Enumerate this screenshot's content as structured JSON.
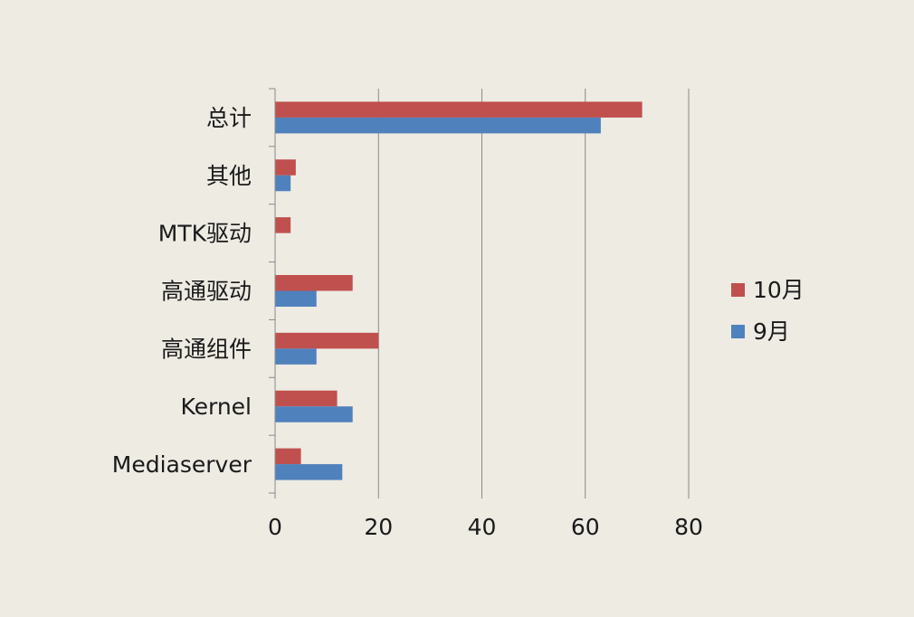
{
  "chart_data": {
    "type": "bar",
    "orientation": "horizontal",
    "categories": [
      "总计",
      "其他",
      "MTK驱动",
      "高通驱动",
      "高通组件",
      "Kernel",
      "Mediaserver"
    ],
    "series": [
      {
        "name": "10月",
        "color": "#c0504d",
        "values": [
          71,
          4,
          3,
          15,
          20,
          12,
          5
        ]
      },
      {
        "name": "9月",
        "color": "#4f81bd",
        "values": [
          63,
          3,
          0,
          8,
          8,
          15,
          13
        ]
      }
    ],
    "xlim": [
      0,
      80
    ],
    "xticks": [
      "0",
      "20",
      "40",
      "60",
      "80"
    ],
    "grid": true,
    "legend": "right"
  }
}
